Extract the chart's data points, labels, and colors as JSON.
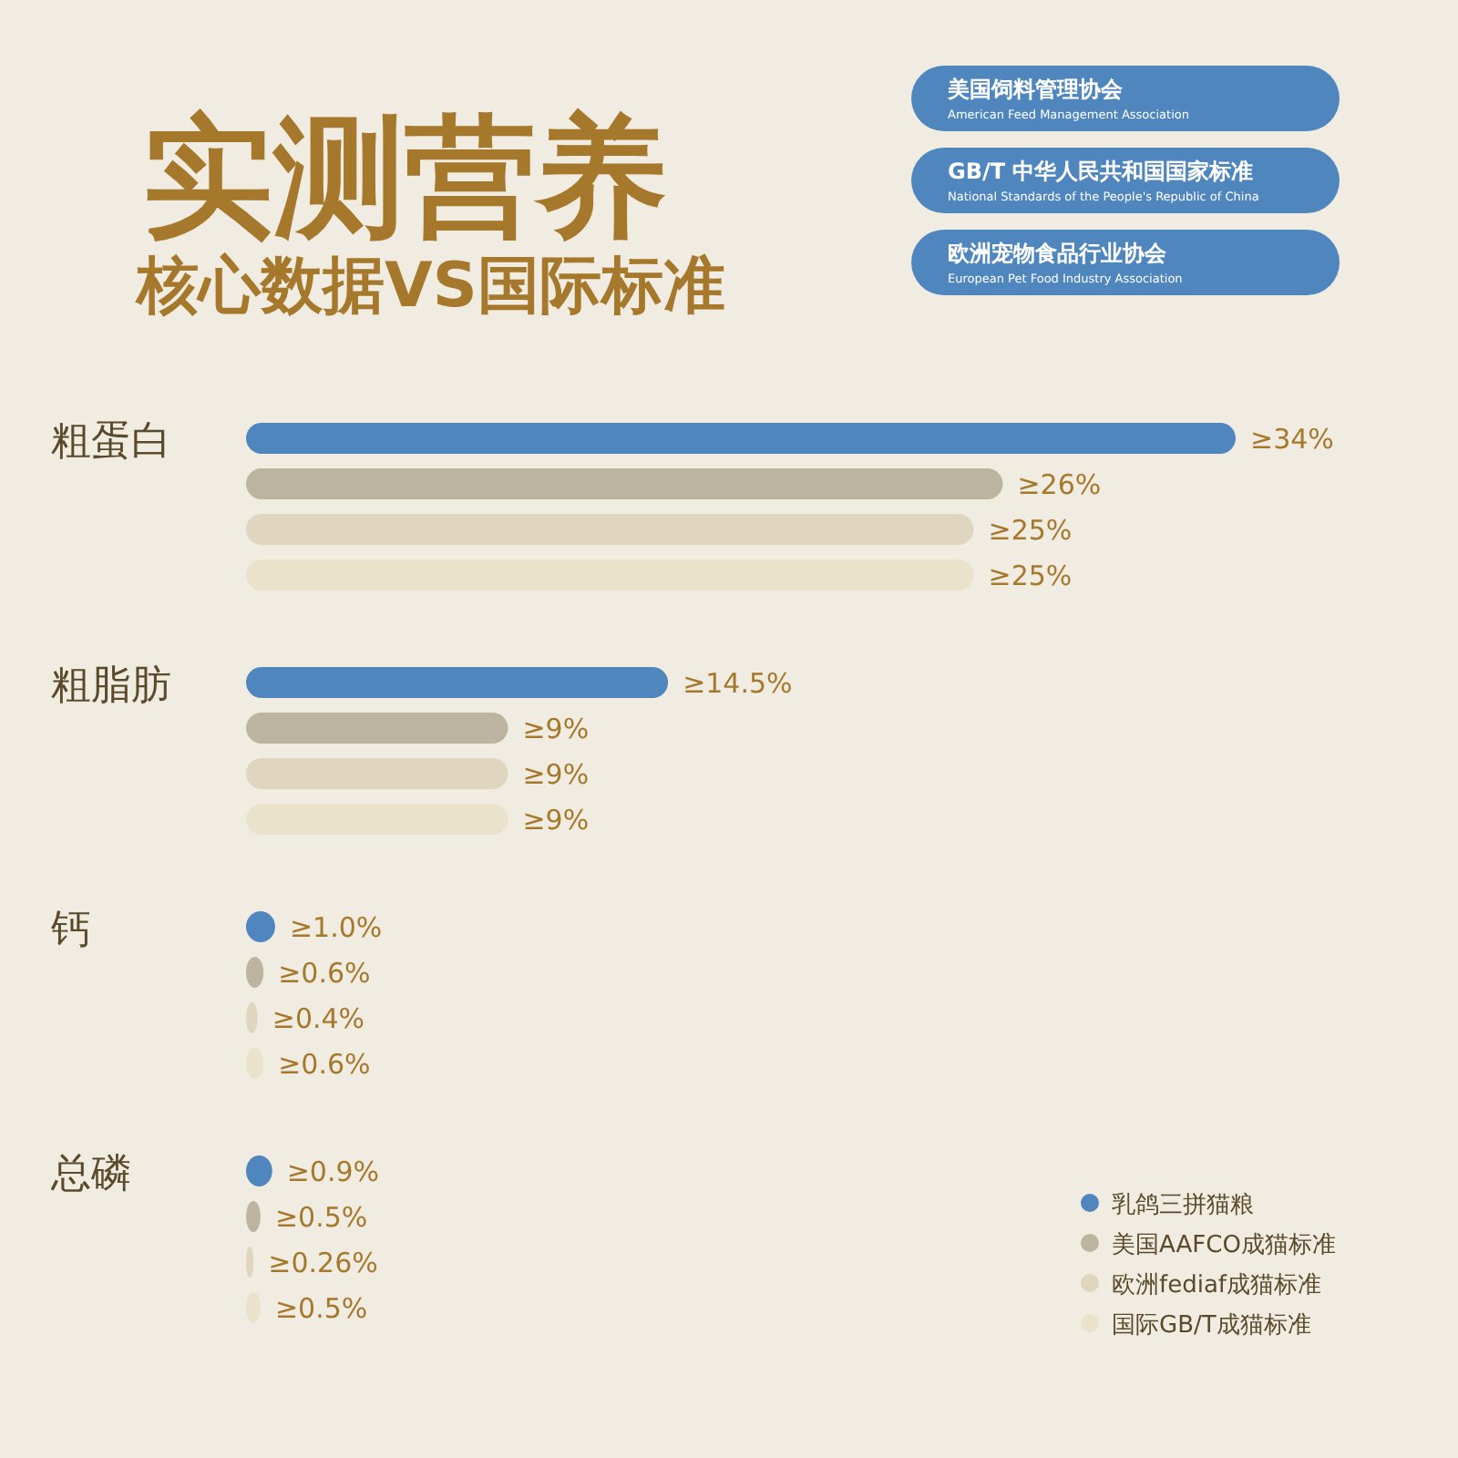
{
  "chart_data": {
    "type": "bar",
    "orientation": "horizontal",
    "title": "实测营养",
    "subtitle": "核心数据VS国际标准",
    "categories": [
      "粗蛋白",
      "粗脂肪",
      "钙",
      "总磷"
    ],
    "series": [
      {
        "name": "乳鸽三拼猫粮",
        "color": "#4f86bd",
        "values": [
          34,
          14.5,
          1.0,
          0.9
        ],
        "value_labels": [
          "≥34%",
          "≥14.5%",
          "≥1.0%",
          "≥0.9%"
        ]
      },
      {
        "name": "美国AAFCO成猫标准",
        "color": "#bdb4a0",
        "values": [
          26,
          9,
          0.6,
          0.5
        ],
        "value_labels": [
          "≥26%",
          "≥9%",
          "≥0.6%",
          "≥0.5%"
        ]
      },
      {
        "name": "欧洲fediaf成猫标准",
        "color": "#e0d6bf",
        "values": [
          25,
          9,
          0.4,
          0.26
        ],
        "value_labels": [
          "≥25%",
          "≥9%",
          "≥0.4%",
          "≥0.26%"
        ]
      },
      {
        "name": "国际GB/T成猫标准",
        "color": "#ebe2cb",
        "values": [
          25,
          9,
          0.6,
          0.5
        ],
        "value_labels": [
          "≥25%",
          "≥9%",
          "≥0.6%",
          "≥0.5%"
        ]
      }
    ],
    "legend": "bottom right",
    "annotations": [
      "美国饲料管理协会",
      "American Feed Management Association",
      "GB/T",
      "中华人民共和国国家标准",
      "National Standards of the People's Republic of China",
      "欧洲宠物食品行业协会",
      "European Pet Food Industry Association"
    ]
  }
}
